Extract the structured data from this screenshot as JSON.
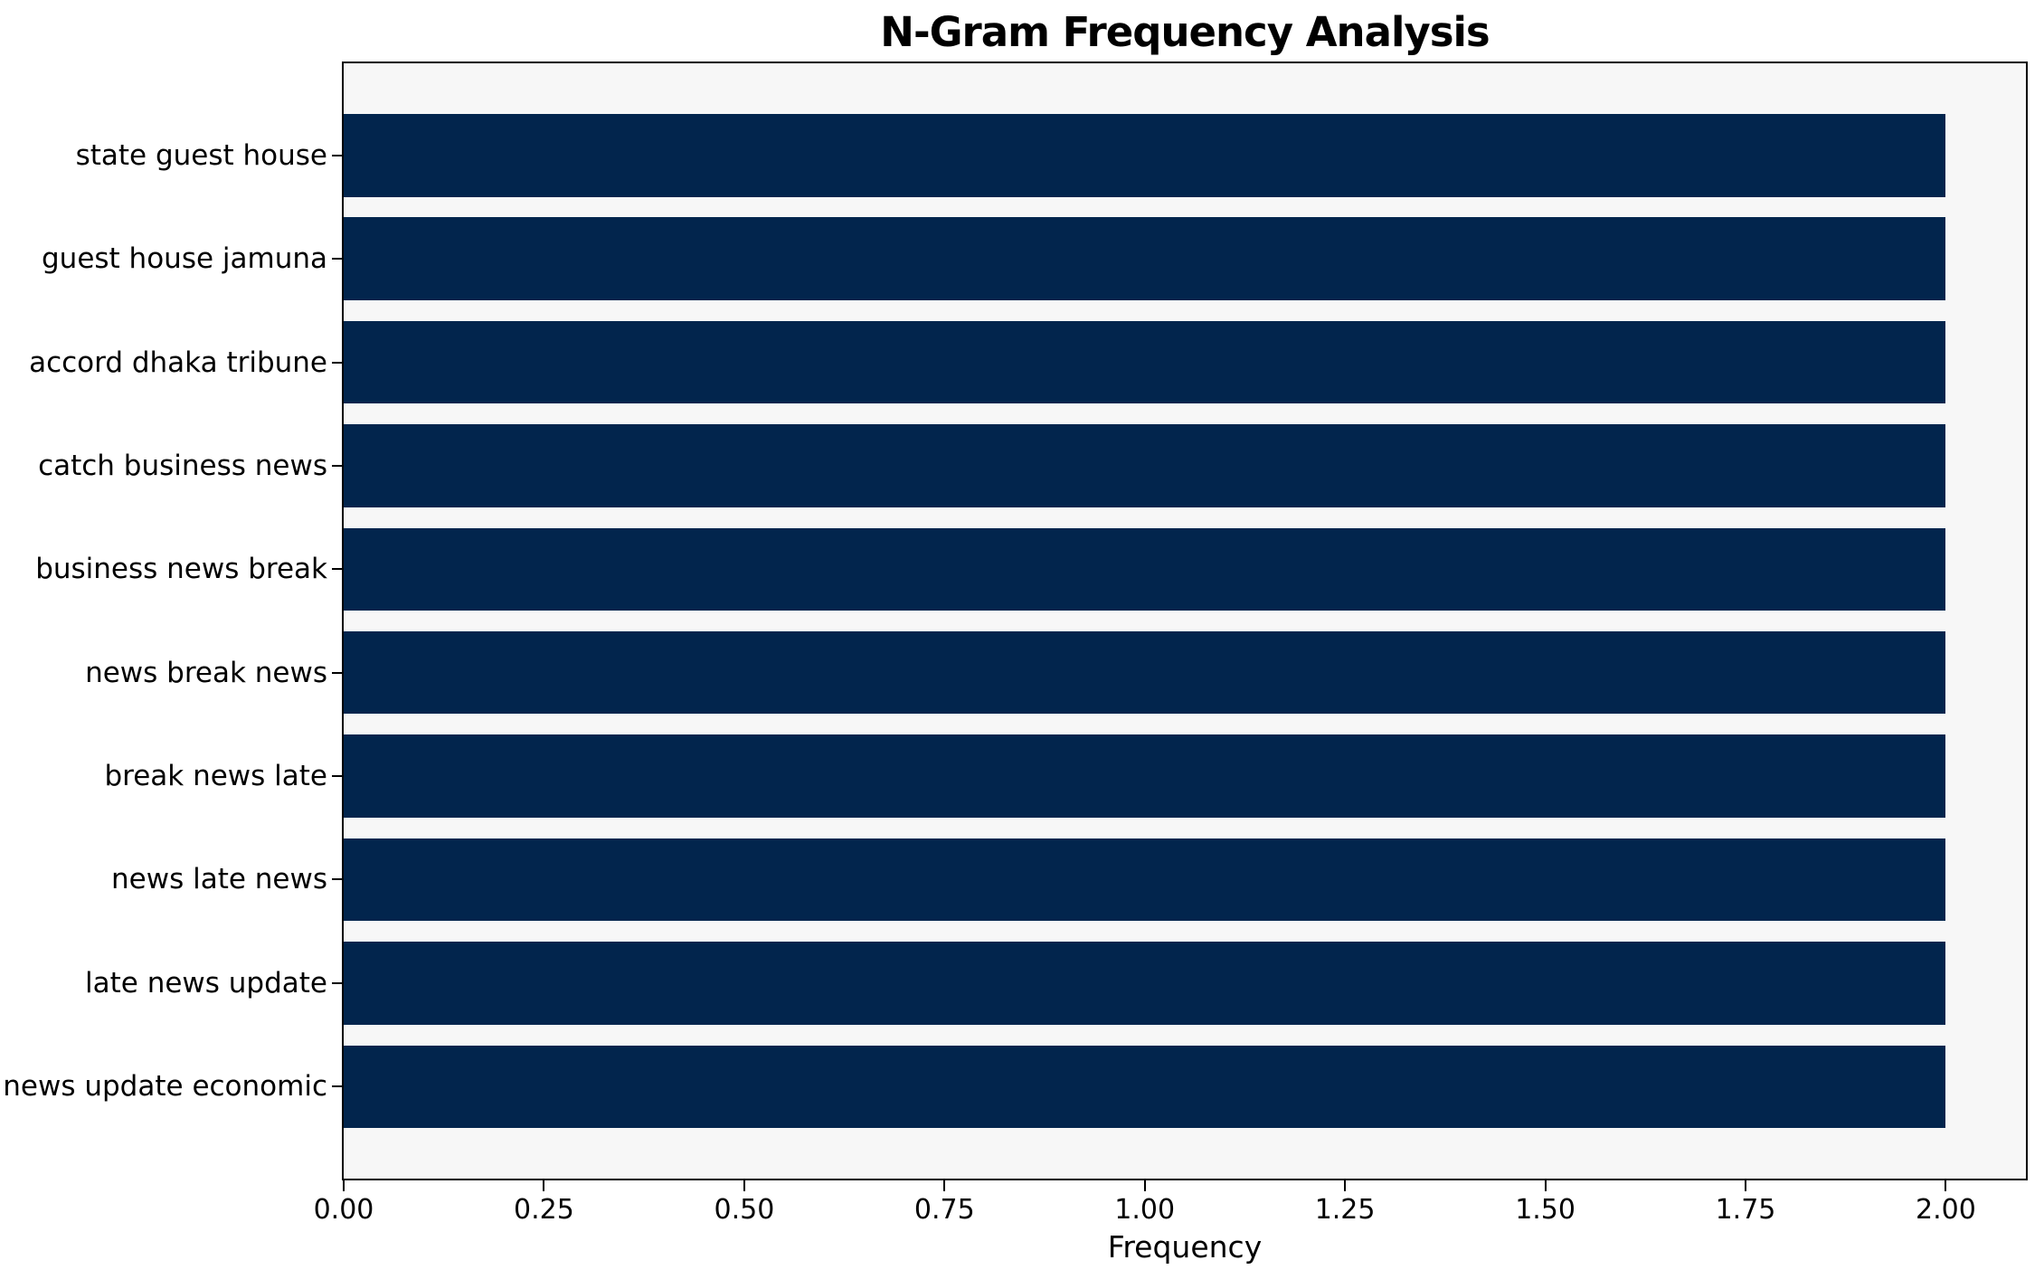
{
  "chart_data": {
    "type": "bar",
    "orientation": "horizontal",
    "title": "N-Gram Frequency Analysis",
    "xlabel": "Frequency",
    "ylabel": "",
    "categories": [
      "state guest house",
      "guest house jamuna",
      "accord dhaka tribune",
      "catch business news",
      "business news break",
      "news break news",
      "break news late",
      "news late news",
      "late news update",
      "news update economic"
    ],
    "values": [
      2,
      2,
      2,
      2,
      2,
      2,
      2,
      2,
      2,
      2
    ],
    "xlim": [
      0,
      2.1
    ],
    "xticks": [
      0,
      0.25,
      0.5,
      0.75,
      1.0,
      1.25,
      1.5,
      1.75,
      2.0
    ],
    "xtick_labels": [
      "0.00",
      "0.25",
      "0.50",
      "0.75",
      "1.00",
      "1.25",
      "1.50",
      "1.75",
      "2.00"
    ],
    "grid": false,
    "legend": null,
    "bar_color": "#02254d",
    "plot_bg": "#f7f7f7",
    "page_bg": "#ffffff",
    "spine_color": "#000000",
    "text_color": "#000000"
  }
}
